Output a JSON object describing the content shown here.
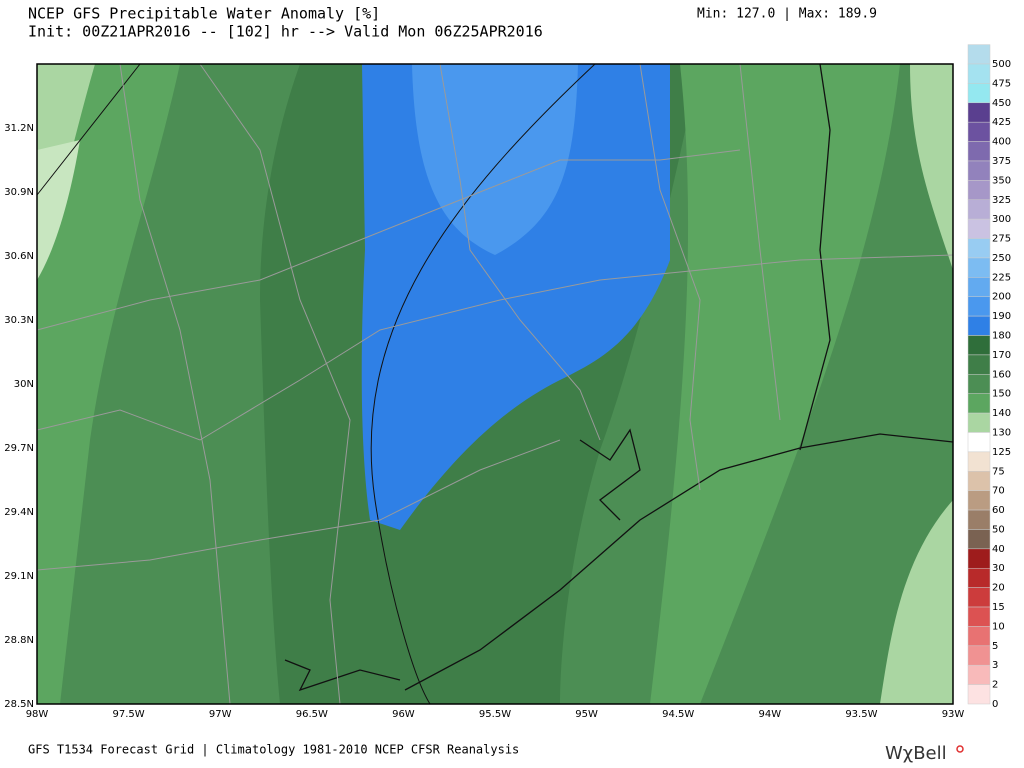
{
  "header": {
    "title": "NCEP GFS Precipitable Water Anomaly [%]",
    "subtitle": "Init: 00Z21APR2016 -- [102] hr --> Valid Mon 06Z25APR2016",
    "range": "Min: 127.0 | Max: 189.9"
  },
  "map": {
    "lat_labels": [
      "31.2N",
      "30.9N",
      "30.6N",
      "30.3N",
      "30N",
      "29.7N",
      "29.4N",
      "29.1N",
      "28.8N",
      "28.5N"
    ],
    "lon_labels": [
      "98W",
      "97.5W",
      "97W",
      "96.5W",
      "96W",
      "95.5W",
      "95W",
      "94.5W",
      "94W",
      "93.5W",
      "93W"
    ]
  },
  "colorbar": [
    {
      "label": "500",
      "color": "#b4dcec"
    },
    {
      "label": "475",
      "color": "#a4e2f0"
    },
    {
      "label": "450",
      "color": "#94e8f0"
    },
    {
      "label": "425",
      "color": "#5a3f8f"
    },
    {
      "label": "400",
      "color": "#6c52a0"
    },
    {
      "label": "375",
      "color": "#7e6aae"
    },
    {
      "label": "350",
      "color": "#9282bc"
    },
    {
      "label": "325",
      "color": "#a697c8"
    },
    {
      "label": "300",
      "color": "#b8aed6"
    },
    {
      "label": "275",
      "color": "#cac2e2"
    },
    {
      "label": "250",
      "color": "#98ccf2"
    },
    {
      "label": "225",
      "color": "#7cbcf2"
    },
    {
      "label": "200",
      "color": "#62aaf0"
    },
    {
      "label": "190",
      "color": "#4a98ee"
    },
    {
      "label": "180",
      "color": "#2f80e6"
    },
    {
      "label": "170",
      "color": "#2f6e3a"
    },
    {
      "label": "160",
      "color": "#3f7e48"
    },
    {
      "label": "150",
      "color": "#4c8e54"
    },
    {
      "label": "140",
      "color": "#5ca660"
    },
    {
      "label": "130",
      "color": "#aad6a2"
    },
    {
      "label": "125",
      "color": "#ffffff"
    },
    {
      "label": "75",
      "color": "#f2e2d2"
    },
    {
      "label": "70",
      "color": "#dcc2aa"
    },
    {
      "label": "60",
      "color": "#ba9c82"
    },
    {
      "label": "50",
      "color": "#9a7e68"
    },
    {
      "label": "40",
      "color": "#7a6252"
    },
    {
      "label": "30",
      "color": "#9e1c1c"
    },
    {
      "label": "20",
      "color": "#b82a2a"
    },
    {
      "label": "15",
      "color": "#cc3c3c"
    },
    {
      "label": "10",
      "color": "#dc5252"
    },
    {
      "label": "5",
      "color": "#e87272"
    },
    {
      "label": "3",
      "color": "#f09292"
    },
    {
      "label": "2",
      "color": "#f8baba"
    },
    {
      "label": "0",
      "color": "#fde2e2"
    }
  ],
  "footer": {
    "text": "GFS T1534 Forecast Grid | Climatology 1981-2010 NCEP CFSR Reanalysis",
    "logo": "WχBell"
  }
}
